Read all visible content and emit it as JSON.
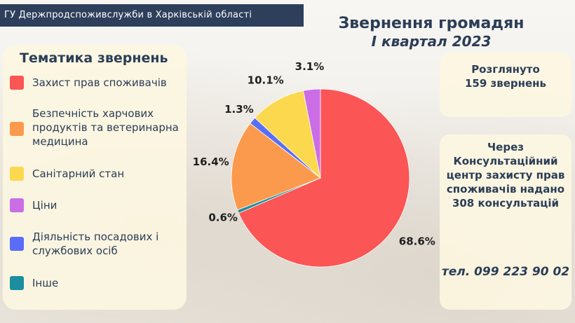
{
  "header": {
    "organization": "ГУ Держпродспоживслужби в Харківській області",
    "title": "Звернення громадян",
    "subtitle": "І квартал 2023"
  },
  "legend": {
    "title": "Тематика звернень"
  },
  "chart_data": {
    "type": "pie",
    "title": "Звернення громадян",
    "subtitle": "І квартал 2023",
    "legend_position": "left",
    "slices": [
      {
        "label": "Захист прав споживачів",
        "value": 68.6,
        "display": "68.6%",
        "color": "#fb5555"
      },
      {
        "label": "Інше",
        "value": 0.6,
        "display": "0.6%",
        "color": "#1d8ea0"
      },
      {
        "label": "Безпечність харчових продуктів та ветеринарна медицина",
        "value": 16.4,
        "display": "16.4%",
        "color": "#fb9a4c"
      },
      {
        "label": "Діяльність посадових і службових осіб",
        "value": 1.3,
        "display": "1.3%",
        "color": "#5a6df7"
      },
      {
        "label": "Санітарний стан",
        "value": 10.1,
        "display": "10.1%",
        "color": "#fcd84f"
      },
      {
        "label": "Ціни",
        "value": 3.1,
        "display": "3.1%",
        "color": "#cb6ee6"
      }
    ],
    "legend_order": [
      "Захист прав споживачів",
      "Безпечність харчових продуктів та ветеринарна медицина",
      "Санітарний стан",
      "Ціни",
      "Діяльність посадових і службових осіб",
      "Інше"
    ]
  },
  "stats": {
    "reviewed": "Розглянуто 159 звернень",
    "consultations": "Через Консультаційний центр захисту прав споживачів надано 308 консультацій",
    "phone": "тел. 099 223 90 02"
  }
}
